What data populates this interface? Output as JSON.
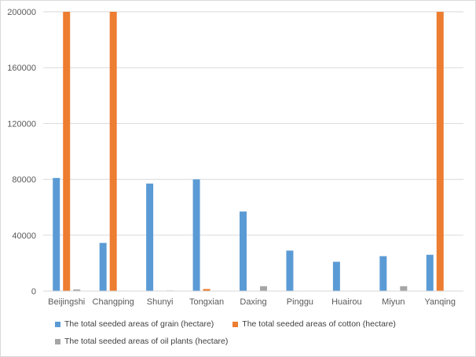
{
  "chart_data": {
    "type": "bar",
    "categories": [
      "Beijingshi",
      "Changping",
      "Shunyi",
      "Tongxian",
      "Daxing",
      "Pinggu",
      "Huairou",
      "Miyun",
      "Yanqing"
    ],
    "series": [
      {
        "name": "The total seeded areas of grain (hectare)",
        "color": "#5b9bd5",
        "values": [
          81000,
          34500,
          77000,
          80000,
          57000,
          29000,
          21000,
          25000,
          26000
        ]
      },
      {
        "name": "The total seeded areas of cotton (hectare)",
        "color": "#ed7d31",
        "values": [
          200000,
          200000,
          300,
          1500,
          200,
          200,
          200,
          200,
          200000
        ]
      },
      {
        "name": "The total seeded areas of oil plants (hectare)",
        "color": "#a5a5a5",
        "values": [
          1200,
          300,
          400,
          300,
          3500,
          300,
          300,
          3500,
          300
        ]
      }
    ],
    "y_ticks": [
      "0",
      "40000",
      "80000",
      "120000",
      "160000",
      "200000"
    ],
    "ylim": [
      0,
      200000
    ],
    "grid": true,
    "legend_position": "bottom",
    "title": "",
    "xlabel": "",
    "ylabel": ""
  }
}
